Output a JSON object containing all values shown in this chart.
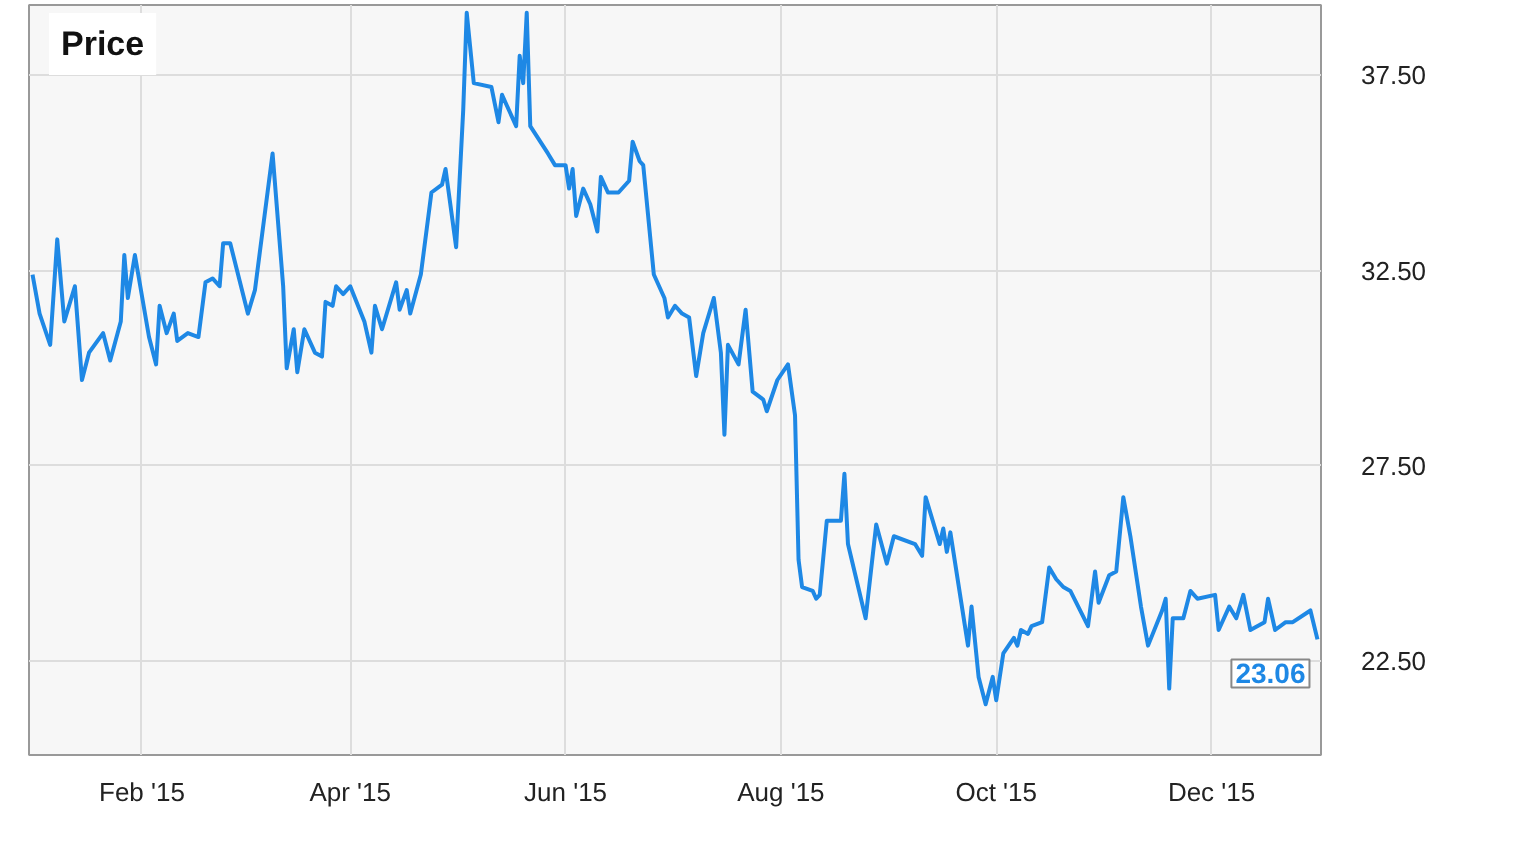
{
  "chart_data": {
    "type": "line",
    "title": "Price",
    "x": [
      "2015-01-01",
      "2015-01-03",
      "2015-01-06",
      "2015-01-08",
      "2015-01-10",
      "2015-01-13",
      "2015-01-15",
      "2015-01-17",
      "2015-01-21",
      "2015-01-23",
      "2015-01-26",
      "2015-01-27",
      "2015-01-28",
      "2015-01-30",
      "2015-02-03",
      "2015-02-05",
      "2015-02-06",
      "2015-02-08",
      "2015-02-10",
      "2015-02-11",
      "2015-02-14",
      "2015-02-17",
      "2015-02-19",
      "2015-02-21",
      "2015-02-23",
      "2015-02-24",
      "2015-02-26",
      "2015-03-03",
      "2015-03-05",
      "2015-03-10",
      "2015-03-13",
      "2015-03-14",
      "2015-03-16",
      "2015-03-17",
      "2015-03-19",
      "2015-03-22",
      "2015-03-24",
      "2015-03-25",
      "2015-03-27",
      "2015-03-28",
      "2015-03-30",
      "2015-04-01",
      "2015-04-05",
      "2015-04-07",
      "2015-04-08",
      "2015-04-10",
      "2015-04-14",
      "2015-04-15",
      "2015-04-17",
      "2015-04-18",
      "2015-04-21",
      "2015-04-24",
      "2015-04-27",
      "2015-04-28",
      "2015-05-01",
      "2015-05-03",
      "2015-05-04",
      "2015-05-06",
      "2015-05-11",
      "2015-05-13",
      "2015-05-14",
      "2015-05-18",
      "2015-05-19",
      "2015-05-20",
      "2015-05-21",
      "2015-05-22",
      "2015-05-27",
      "2015-05-29",
      "2015-06-01",
      "2015-06-02",
      "2015-06-03",
      "2015-06-04",
      "2015-06-06",
      "2015-06-08",
      "2015-06-10",
      "2015-06-11",
      "2015-06-13",
      "2015-06-16",
      "2015-06-19",
      "2015-06-20",
      "2015-06-22",
      "2015-06-23",
      "2015-06-26",
      "2015-06-29",
      "2015-06-30",
      "2015-07-02",
      "2015-07-04",
      "2015-07-06",
      "2015-07-08",
      "2015-07-10",
      "2015-07-13",
      "2015-07-15",
      "2015-07-16",
      "2015-07-17",
      "2015-07-20",
      "2015-07-22",
      "2015-07-24",
      "2015-07-27",
      "2015-07-28",
      "2015-07-31",
      "2015-08-03",
      "2015-08-05",
      "2015-08-06",
      "2015-08-07",
      "2015-08-10",
      "2015-08-11",
      "2015-08-12",
      "2015-08-14",
      "2015-08-18",
      "2015-08-19",
      "2015-08-20",
      "2015-08-25",
      "2015-08-28",
      "2015-08-31",
      "2015-09-02",
      "2015-09-08",
      "2015-09-10",
      "2015-09-11",
      "2015-09-15",
      "2015-09-16",
      "2015-09-17",
      "2015-09-18",
      "2015-09-23",
      "2015-09-24",
      "2015-09-26",
      "2015-09-28",
      "2015-09-30",
      "2015-10-01",
      "2015-10-03",
      "2015-10-06",
      "2015-10-07",
      "2015-10-08",
      "2015-10-10",
      "2015-10-11",
      "2015-10-14",
      "2015-10-16",
      "2015-10-18",
      "2015-10-20",
      "2015-10-22",
      "2015-10-27",
      "2015-10-29",
      "2015-10-30",
      "2015-11-02",
      "2015-11-04",
      "2015-11-06",
      "2015-11-08",
      "2015-11-11",
      "2015-11-13",
      "2015-11-17",
      "2015-11-18",
      "2015-11-19",
      "2015-11-20",
      "2015-11-23",
      "2015-11-25",
      "2015-11-27",
      "2015-12-02",
      "2015-12-03",
      "2015-12-06",
      "2015-12-08",
      "2015-12-10",
      "2015-12-12",
      "2015-12-16",
      "2015-12-17",
      "2015-12-19",
      "2015-12-22",
      "2015-12-24",
      "2015-12-29",
      "2015-12-31"
    ],
    "series": [
      {
        "color": "#1e88e5",
        "values": [
          32.4,
          31.4,
          30.6,
          33.3,
          31.2,
          32.1,
          29.7,
          30.4,
          30.9,
          30.2,
          31.2,
          32.9,
          31.8,
          32.9,
          30.8,
          30.1,
          31.6,
          30.9,
          31.4,
          30.7,
          30.9,
          30.8,
          32.2,
          32.3,
          32.1,
          33.2,
          33.2,
          31.4,
          32.0,
          35.5,
          32.1,
          30.0,
          31.0,
          29.9,
          31.0,
          30.4,
          30.3,
          31.7,
          31.6,
          32.1,
          31.9,
          32.1,
          31.2,
          30.4,
          31.6,
          31.0,
          32.2,
          31.5,
          32.0,
          31.4,
          32.4,
          34.5,
          34.7,
          35.1,
          33.1,
          36.6,
          39.1,
          37.3,
          37.2,
          36.3,
          37.0,
          36.2,
          38.0,
          37.3,
          39.1,
          36.2,
          35.5,
          35.2,
          35.2,
          34.6,
          35.1,
          33.9,
          34.6,
          34.2,
          33.5,
          34.9,
          34.5,
          34.5,
          34.8,
          35.8,
          35.3,
          35.2,
          32.4,
          31.8,
          31.3,
          31.6,
          31.4,
          31.3,
          29.8,
          30.9,
          31.8,
          30.4,
          28.3,
          30.6,
          30.1,
          31.5,
          29.4,
          29.2,
          28.9,
          29.7,
          30.1,
          28.8,
          25.1,
          24.4,
          24.3,
          24.1,
          24.2,
          26.1,
          26.1,
          27.3,
          25.5,
          23.6,
          26.0,
          25.0,
          25.7,
          25.5,
          25.2,
          26.7,
          25.5,
          25.9,
          25.3,
          25.8,
          22.9,
          23.9,
          22.1,
          21.4,
          22.1,
          21.5,
          22.7,
          23.1,
          22.9,
          23.3,
          23.2,
          23.4,
          23.5,
          24.9,
          24.6,
          24.4,
          24.3,
          23.4,
          24.8,
          24.0,
          24.7,
          24.8,
          26.7,
          25.7,
          23.9,
          22.9,
          23.8,
          24.1,
          21.8,
          23.6,
          23.6,
          24.3,
          24.1,
          24.2,
          23.3,
          23.9,
          23.6,
          24.2,
          23.3,
          23.5,
          24.1,
          23.3,
          23.5,
          23.5,
          23.8,
          23.06
        ]
      }
    ],
    "annotations": [
      {
        "text": "23.06",
        "x": "2015-12-31",
        "y": 23.06
      }
    ],
    "xlim": [
      "2014-12-31",
      "2016-01-01"
    ],
    "xticks": [
      {
        "value": "2015-02-01",
        "label": "Feb '15"
      },
      {
        "value": "2015-04-01",
        "label": "Apr '15"
      },
      {
        "value": "2015-06-01",
        "label": "Jun '15"
      },
      {
        "value": "2015-08-01",
        "label": "Aug '15"
      },
      {
        "value": "2015-10-01",
        "label": "Oct '15"
      },
      {
        "value": "2015-12-01",
        "label": "Dec '15"
      }
    ],
    "ylim": [
      20.1,
      39.3
    ],
    "yticks": [
      {
        "value": 22.5,
        "label": "22.50"
      },
      {
        "value": 27.5,
        "label": "27.50"
      },
      {
        "value": 32.5,
        "label": "32.50"
      },
      {
        "value": 37.5,
        "label": "37.50"
      }
    ],
    "grid": true,
    "marker": "none",
    "line_style": "solid"
  }
}
